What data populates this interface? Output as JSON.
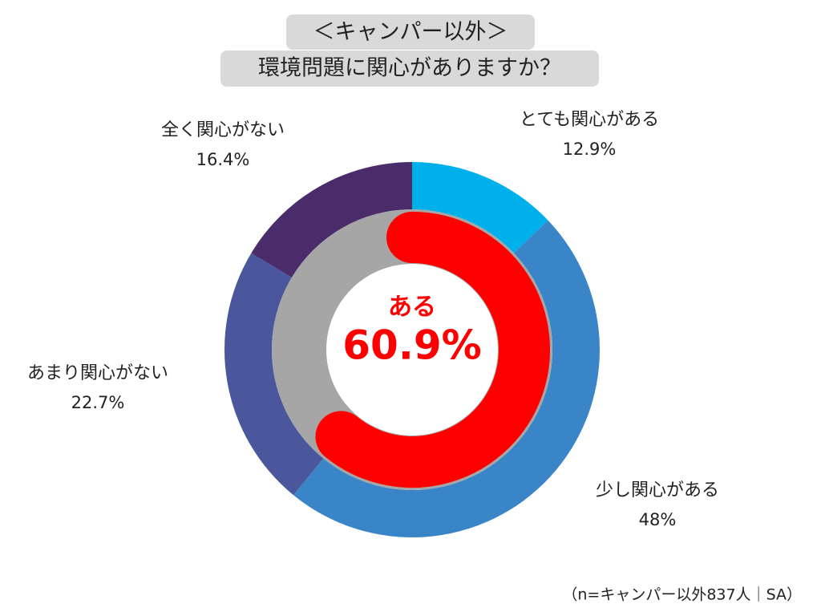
{
  "chart_data": {
    "type": "donut",
    "title": [
      "＜キャンパー以外＞",
      "環境問題に関心がありますか？"
    ],
    "categories": [
      "とても関心がある",
      "少し関心がある",
      "あまり関心がない",
      "全く関心がない"
    ],
    "values": [
      12.9,
      48,
      22.7,
      16.4
    ],
    "value_labels": [
      "12.9%",
      "48%",
      "22.7%",
      "16.4%"
    ],
    "colors": [
      "#00b0eb",
      "#3a85c8",
      "#4a579c",
      "#4b2c6b"
    ],
    "inner": {
      "label": "ある",
      "value": 60.9,
      "value_label": "60.9%",
      "color": "#ff0000",
      "track_color": "#a6a6a6"
    },
    "note": "（n=キャンパー以外837人｜SA）"
  }
}
